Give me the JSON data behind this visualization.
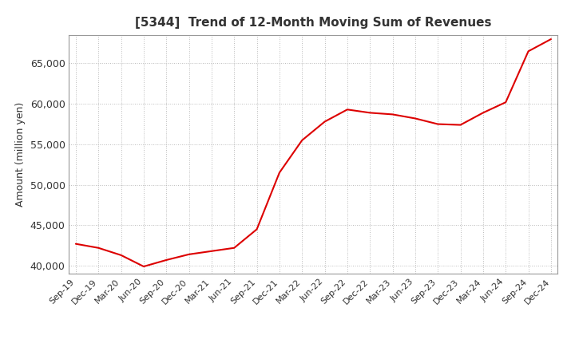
{
  "title": "[5344]  Trend of 12-Month Moving Sum of Revenues",
  "ylabel": "Amount (million yen)",
  "line_color": "#dd0000",
  "background_color": "#ffffff",
  "plot_bg_color": "#ffffff",
  "grid_color": "#aaaaaa",
  "ylim": [
    39000,
    68500
  ],
  "yticks": [
    40000,
    45000,
    50000,
    55000,
    60000,
    65000
  ],
  "x_labels": [
    "Sep-19",
    "Dec-19",
    "Mar-20",
    "Jun-20",
    "Sep-20",
    "Dec-20",
    "Mar-21",
    "Jun-21",
    "Sep-21",
    "Dec-21",
    "Mar-22",
    "Jun-22",
    "Sep-22",
    "Dec-22",
    "Mar-23",
    "Jun-23",
    "Sep-23",
    "Dec-23",
    "Mar-24",
    "Jun-24",
    "Sep-24",
    "Dec-24"
  ],
  "values": [
    42700,
    42200,
    41300,
    39900,
    40700,
    41400,
    41800,
    42200,
    44500,
    51500,
    55500,
    57800,
    59300,
    58900,
    58700,
    58200,
    57500,
    57400,
    58900,
    60200,
    66500,
    68000
  ]
}
